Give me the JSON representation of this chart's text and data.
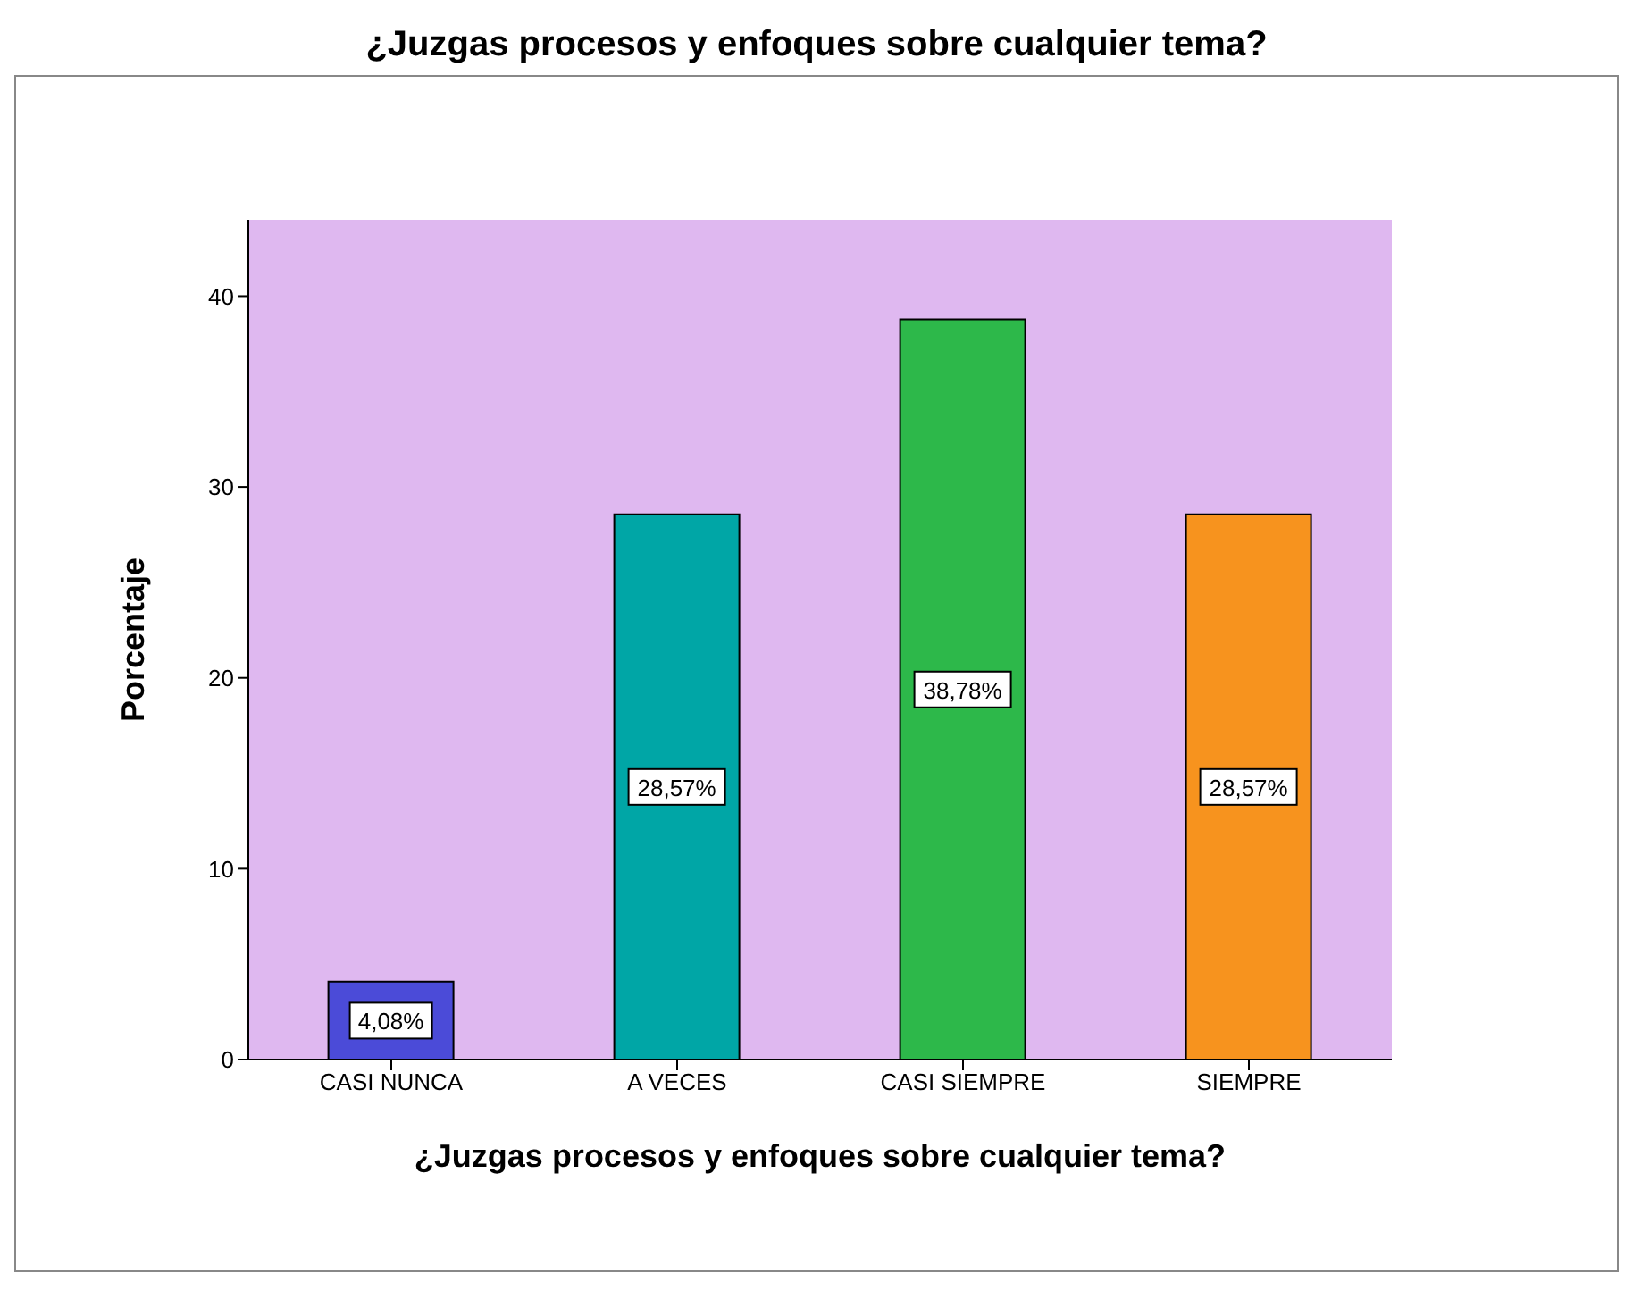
{
  "chart_data": {
    "type": "bar",
    "title": "¿Juzgas procesos y enfoques sobre cualquier tema?",
    "xlabel": "¿Juzgas procesos y enfoques sobre cualquier tema?",
    "ylabel": "Porcentaje",
    "categories": [
      "CASI NUNCA",
      "A VECES",
      "CASI SIEMPRE",
      "SIEMPRE"
    ],
    "values": [
      4.08,
      28.57,
      38.78,
      28.57
    ],
    "value_labels": [
      "4,08%",
      "28,57%",
      "38,78%",
      "28,57%"
    ],
    "colors": [
      "#4b4bd8",
      "#00a6a6",
      "#2db84a",
      "#f7931e"
    ],
    "ylim": [
      0,
      44
    ],
    "yticks": [
      0,
      10,
      20,
      30,
      40
    ],
    "grid": false
  }
}
